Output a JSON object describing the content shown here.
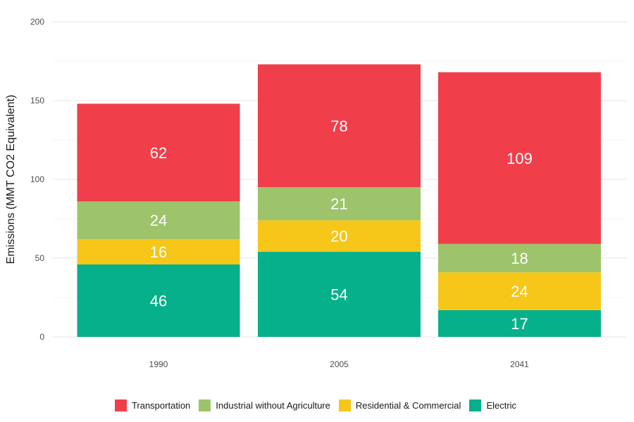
{
  "chart_data": {
    "type": "bar",
    "stacked": true,
    "categories": [
      "1990",
      "2005",
      "2041"
    ],
    "series": [
      {
        "name": "Electric",
        "color": "#06b08a",
        "values": [
          46,
          54,
          17
        ]
      },
      {
        "name": "Residential & Commercial",
        "color": "#f6c619",
        "values": [
          16,
          20,
          24
        ]
      },
      {
        "name": "Industrial without Agriculture",
        "color": "#9dc46a",
        "values": [
          24,
          21,
          18
        ]
      },
      {
        "name": "Transportation",
        "color": "#f03e4b",
        "values": [
          62,
          78,
          109
        ]
      }
    ],
    "legend_order": [
      "Transportation",
      "Industrial without Agriculture",
      "Residential & Commercial",
      "Electric"
    ],
    "title": "",
    "xlabel": "",
    "ylabel": "Emissions (MMT CO2 Equivalent)",
    "ylim": [
      0,
      200
    ],
    "yticks": [
      0,
      50,
      100,
      150,
      200
    ],
    "grid": true,
    "legend_position": "bottom"
  }
}
